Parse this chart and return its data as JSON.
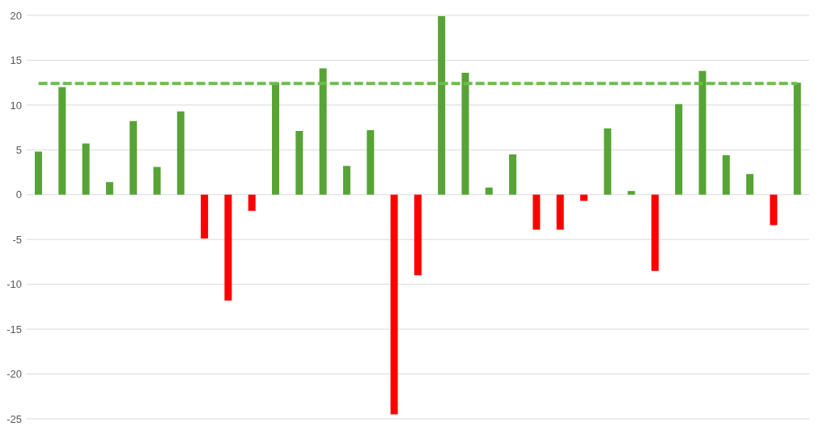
{
  "chart_data": {
    "type": "bar",
    "categories": [
      null,
      null,
      null,
      null,
      null,
      null,
      null,
      null,
      null,
      null,
      null,
      null,
      null,
      null,
      null,
      null,
      null,
      null,
      null,
      null,
      null,
      null,
      null,
      null,
      null,
      null,
      null,
      null,
      null,
      null,
      null,
      null,
      null
    ],
    "values": [
      4.8,
      12.0,
      5.7,
      1.4,
      8.2,
      3.1,
      9.3,
      -4.9,
      -11.8,
      -1.8,
      12.5,
      7.1,
      14.1,
      3.2,
      7.2,
      -24.5,
      -9.0,
      19.9,
      13.6,
      0.8,
      4.5,
      -3.9,
      -3.9,
      -0.7,
      7.4,
      0.4,
      -8.5,
      10.1,
      13.8,
      4.4,
      2.3,
      -3.4,
      12.5
    ],
    "colors": [
      "#57a336",
      "#57a336",
      "#57a336",
      "#57a336",
      "#57a336",
      "#57a336",
      "#57a336",
      "#ff0000",
      "#ff0000",
      "#ff0000",
      "#57a336",
      "#57a336",
      "#57a336",
      "#57a336",
      "#57a336",
      "#ff0000",
      "#ff0000",
      "#57a336",
      "#57a336",
      "#57a336",
      "#57a336",
      "#ff0000",
      "#ff0000",
      "#ff0000",
      "#57a336",
      "#57a336",
      "#ff0000",
      "#57a336",
      "#57a336",
      "#57a336",
      "#57a336",
      "#ff0000",
      "#57a336"
    ],
    "ylim": [
      -25,
      20
    ],
    "yticks": [
      -25,
      -20,
      -15,
      -10,
      -5,
      0,
      5,
      10,
      15,
      20
    ],
    "grid": "y",
    "ref_lines": [
      {
        "axis": "y",
        "value": 12.4,
        "color": "#6cbd4c",
        "line_style": "dashed"
      }
    ]
  }
}
